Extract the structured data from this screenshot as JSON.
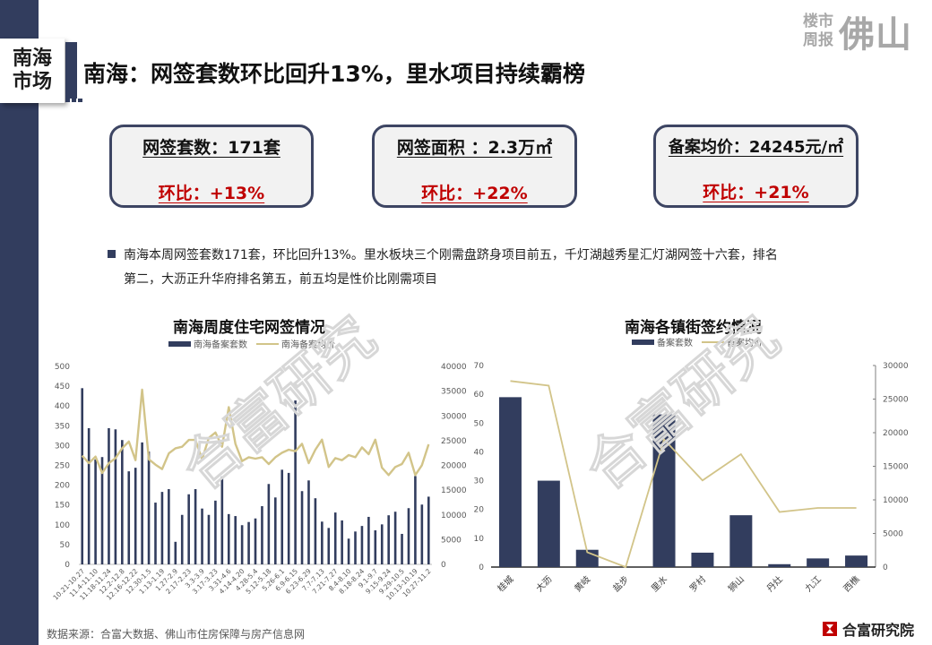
{
  "brand": {
    "small_line1": "楼市",
    "small_line2": "周报",
    "big": "佛山",
    "color": "#a8a8a8"
  },
  "section_tag": {
    "line1": "南海",
    "line2": "市场"
  },
  "page_title": "南海：网签套数环比回升13%，里水项目持续霸榜",
  "kpis": [
    {
      "main": "网签套数：171套",
      "change": "环比：+13%"
    },
    {
      "main": "网签面积 ：2.3万㎡",
      "change": "环比：+22%"
    },
    {
      "main": "备案均价：24245元/㎡",
      "change": "环比：+21%"
    }
  ],
  "summary": {
    "line1": "南海本周网签套数171套，环比回升13%。里水板块三个刚需盘跻身项目前五，千灯湖越秀星汇灯湖网签十六套，排名",
    "line2": "第二，大沥正升华府排名第五，前五均是性价比刚需项目"
  },
  "watermark": "合富研究",
  "colors": {
    "bar": "#323d5e",
    "line": "#d2c489",
    "accent_red": "#c00000",
    "navy": "#323d5e"
  },
  "footer": {
    "source": "数据来源：合富大数据、佛山市住房保障与房产信息网",
    "logo_text": "合富研究院"
  },
  "chart_data": [
    {
      "type": "bar+line",
      "title": "南海周度住宅网签情况",
      "legend": [
        "南海备案套数",
        "南海备案均价"
      ],
      "y_left": {
        "ticks": [
          "0",
          "50",
          "100",
          "150",
          "200",
          "250",
          "300",
          "350",
          "400",
          "450",
          "500"
        ],
        "range": [
          0,
          500
        ]
      },
      "y_right": {
        "ticks": [
          "0",
          "5000",
          "10000",
          "15000",
          "20000",
          "25000",
          "30000",
          "35000",
          "40000"
        ],
        "range": [
          0,
          40000
        ]
      },
      "x_tick_labels": [
        "10.21-10.27",
        "11.4-11.10",
        "11.18-11.24",
        "12.2-12.8",
        "12.16-12.22",
        "12.30-1.5",
        "1.13-1.19",
        "1.27-2.9",
        "2.17-2.23",
        "3.3-3.9",
        "3.17-3.23",
        "3.31-4.6",
        "4.14-4.20",
        "4.28-5.4",
        "5.12-5.18",
        "5.26-6.1",
        "6.9-6.15",
        "6.23-6.29",
        "7.7-7.13",
        "7.21-7.27",
        "8.4-8.10",
        "8.18-8.24",
        "9.1-9.7",
        "9.15-9.24",
        "9.29-10.5",
        "10.13-10.19",
        "10.27-11.2"
      ],
      "series": [
        {
          "name": "南海备案套数",
          "axis": "left",
          "kind": "bar",
          "values": [
            445,
            344,
            265,
            271,
            344,
            341,
            314,
            235,
            244,
            308,
            285,
            156,
            183,
            190,
            57,
            125,
            177,
            190,
            141,
            125,
            161,
            222,
            127,
            122,
            99,
            107,
            116,
            147,
            203,
            169,
            239,
            231,
            414,
            185,
            212,
            167,
            108,
            92,
            131,
            111,
            65,
            83,
            97,
            120,
            86,
            101,
            124,
            133,
            77,
            142,
            223,
            151,
            171
          ]
        },
        {
          "name": "南海备案均价",
          "axis": "right",
          "kind": "line",
          "values": [
            21955,
            20450,
            21775,
            18460,
            20450,
            21475,
            23460,
            24840,
            21050,
            35300,
            21230,
            20150,
            19250,
            22430,
            23460,
            23760,
            25140,
            25140,
            21230,
            25560,
            26650,
            23760,
            31760,
            24360,
            20870,
            21650,
            21350,
            21650,
            20270,
            21650,
            22560,
            23160,
            22860,
            24360,
            20450,
            23160,
            25200,
            19670,
            21475,
            21050,
            22080,
            21650,
            23640,
            22260,
            25200,
            19550,
            18050,
            19670,
            20270,
            22560,
            18050,
            20030,
            24245
          ]
        }
      ]
    },
    {
      "type": "bar+line",
      "title": "南海各镇街签约情况",
      "legend": [
        "备案套数",
        "备案均价"
      ],
      "categories": [
        "桂城",
        "大沥",
        "黄岐",
        "盐步",
        "里水",
        "罗村",
        "狮山",
        "丹灶",
        "九江",
        "西樵"
      ],
      "y_left": {
        "ticks": [
          "0",
          "10",
          "20",
          "30",
          "40",
          "50",
          "60",
          "70"
        ],
        "range": [
          0,
          70
        ]
      },
      "y_right": {
        "ticks": [
          "0",
          "5000",
          "10000",
          "15000",
          "20000",
          "25000",
          "30000"
        ],
        "range": [
          0,
          30000
        ]
      },
      "series": [
        {
          "name": "备案套数",
          "axis": "left",
          "kind": "bar",
          "values": [
            59,
            30,
            6,
            0,
            53,
            5,
            18,
            1,
            3,
            4
          ]
        },
        {
          "name": "备案均价",
          "axis": "right",
          "kind": "line",
          "values": [
            27700,
            27000,
            2200,
            0,
            19000,
            12900,
            16800,
            8200,
            8800,
            8800
          ]
        }
      ]
    }
  ]
}
